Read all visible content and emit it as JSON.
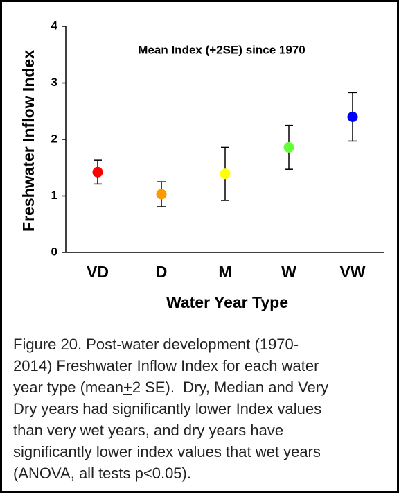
{
  "chart_data": {
    "type": "scatter",
    "title": "Mean Index (+2SE) since 1970",
    "y_label": "Freshwater Inflow Index",
    "x_label": "Water Year Type",
    "categories": [
      "VD",
      "D",
      "M",
      "W",
      "VW"
    ],
    "values": [
      1.42,
      1.03,
      1.39,
      1.86,
      2.4
    ],
    "errors": [
      0.21,
      0.22,
      0.47,
      0.39,
      0.43
    ],
    "colors": [
      "#ff0000",
      "#ff9900",
      "#ffff00",
      "#66ff33",
      "#0000ff"
    ],
    "ylim": [
      0,
      4
    ],
    "yticks": [
      0,
      1,
      2,
      3,
      4
    ],
    "grid": false
  },
  "caption": {
    "lines": [
      [
        "Figure 20. Post-water development (1970-"
      ],
      [
        "2014) Freshwater Inflow Index for each water"
      ],
      [
        "year type (mean",
        "+",
        "2 SE).  Dry, Median and Very"
      ],
      [
        "Dry years had significantly lower Index values"
      ],
      [
        "than very wet years, and dry years have"
      ],
      [
        "significantly lower index values that wet years"
      ],
      [
        "(ANOVA, all tests p<0.05)."
      ]
    ]
  }
}
